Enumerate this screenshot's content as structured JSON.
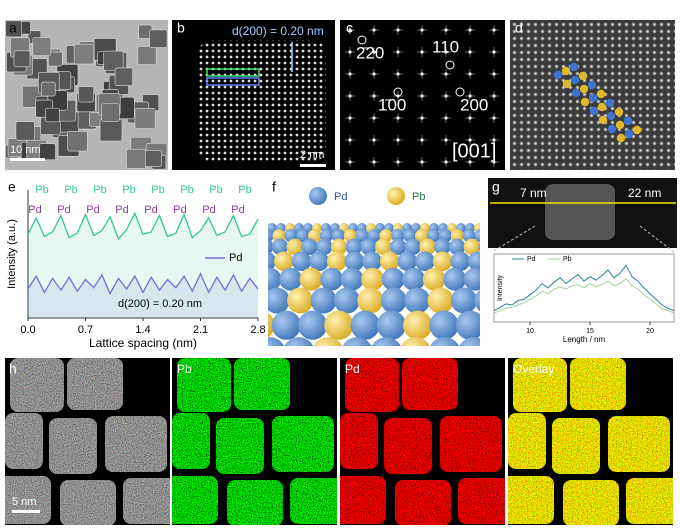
{
  "panel_labels": [
    "a",
    "b",
    "c",
    "d",
    "e",
    "f",
    "g",
    "h"
  ],
  "a": {
    "scale_bar": "10 nm"
  },
  "b": {
    "annotation": "d(200) = 0.20 nm",
    "scale_bar": "2 nm"
  },
  "c": {
    "spots": [
      "2̄20",
      "110",
      "1̄00",
      "200"
    ],
    "zone_axis": "[001]"
  },
  "f": {
    "legend": [
      "Pd",
      "Pb"
    ]
  },
  "g": {
    "start": "7 nm",
    "end": "22 nm"
  },
  "h": {
    "scale_bar": "5 nm",
    "maps": [
      "Pb",
      "Pd",
      "Overlay"
    ]
  },
  "chart_data": [
    {
      "type": "line",
      "xlabel": "Lattice spacing (nm)",
      "ylabel": "Intensity (a.u.)",
      "annotation": "d(200) = 0.20 nm",
      "x": [
        0,
        0.1,
        0.2,
        0.3,
        0.4,
        0.5,
        0.6,
        0.7,
        0.8,
        0.9,
        1.0,
        1.1,
        1.2,
        1.3,
        1.4,
        1.5,
        1.6,
        1.7,
        1.8,
        1.9,
        2.0,
        2.1,
        2.2,
        2.3,
        2.4,
        2.5,
        2.6,
        2.7,
        2.8
      ],
      "xlim": [
        0,
        2.8
      ],
      "xticks": [
        {
          "value": 0,
          "label": "0.0"
        },
        0.7,
        1.4,
        2.1,
        2.8
      ],
      "ylim": [
        0,
        11
      ],
      "series": [
        {
          "name": "Pb",
          "color": "#34c98b",
          "values": [
            7.2,
            8.6,
            7.0,
            7.4,
            8.8,
            6.9,
            7.3,
            8.9,
            7.1,
            7.5,
            8.7,
            6.8,
            7.6,
            9.0,
            7.2,
            7.4,
            8.8,
            7.0,
            7.3,
            8.9,
            6.9,
            7.5,
            8.6,
            7.1,
            7.4,
            8.8,
            7.0,
            7.2,
            8.5
          ]
        },
        {
          "name": "Pd",
          "color": "#7a6cd6",
          "values": [
            2.5,
            3.6,
            2.2,
            3.4,
            2.4,
            3.5,
            2.3,
            3.3,
            2.6,
            3.7,
            2.1,
            3.4,
            2.5,
            3.6,
            2.2,
            3.5,
            2.4,
            3.3,
            2.6,
            3.6,
            2.3,
            3.8,
            2.2,
            3.5,
            2.4,
            3.7,
            2.3,
            3.4,
            2.5
          ]
        }
      ]
    },
    {
      "type": "line",
      "xlabel": "Length / nm",
      "ylabel": "Intensity",
      "x": [
        7,
        7.5,
        8,
        8.5,
        9,
        9.5,
        10,
        10.5,
        11,
        11.5,
        12,
        12.5,
        13,
        13.5,
        14,
        14.5,
        15,
        15.5,
        16,
        16.5,
        17,
        17.5,
        18,
        18.5,
        19,
        19.5,
        20,
        20.5,
        21,
        21.5,
        22
      ],
      "xlim": [
        7,
        22
      ],
      "xticks": [
        10,
        15,
        20
      ],
      "ylim": [
        0,
        6
      ],
      "series": [
        {
          "name": "Pd",
          "color": "#2a7f9e",
          "values": [
            1.0,
            1.3,
            1.6,
            1.5,
            1.9,
            2.0,
            2.4,
            2.8,
            3.4,
            3.0,
            3.5,
            3.9,
            3.4,
            3.8,
            4.2,
            3.6,
            4.0,
            3.7,
            4.1,
            4.6,
            3.9,
            4.3,
            5.0,
            4.0,
            3.6,
            3.0,
            2.5,
            2.0,
            1.5,
            1.2,
            1.0
          ]
        },
        {
          "name": "Pb",
          "color": "#9fd49a",
          "values": [
            0.8,
            1.0,
            1.2,
            1.3,
            1.5,
            1.7,
            2.0,
            2.3,
            2.7,
            2.5,
            2.9,
            3.1,
            2.9,
            3.2,
            3.3,
            3.0,
            3.4,
            3.1,
            3.3,
            3.6,
            3.2,
            3.4,
            3.8,
            3.2,
            2.9,
            2.4,
            2.0,
            1.6,
            1.2,
            1.0,
            0.8
          ]
        }
      ]
    }
  ]
}
